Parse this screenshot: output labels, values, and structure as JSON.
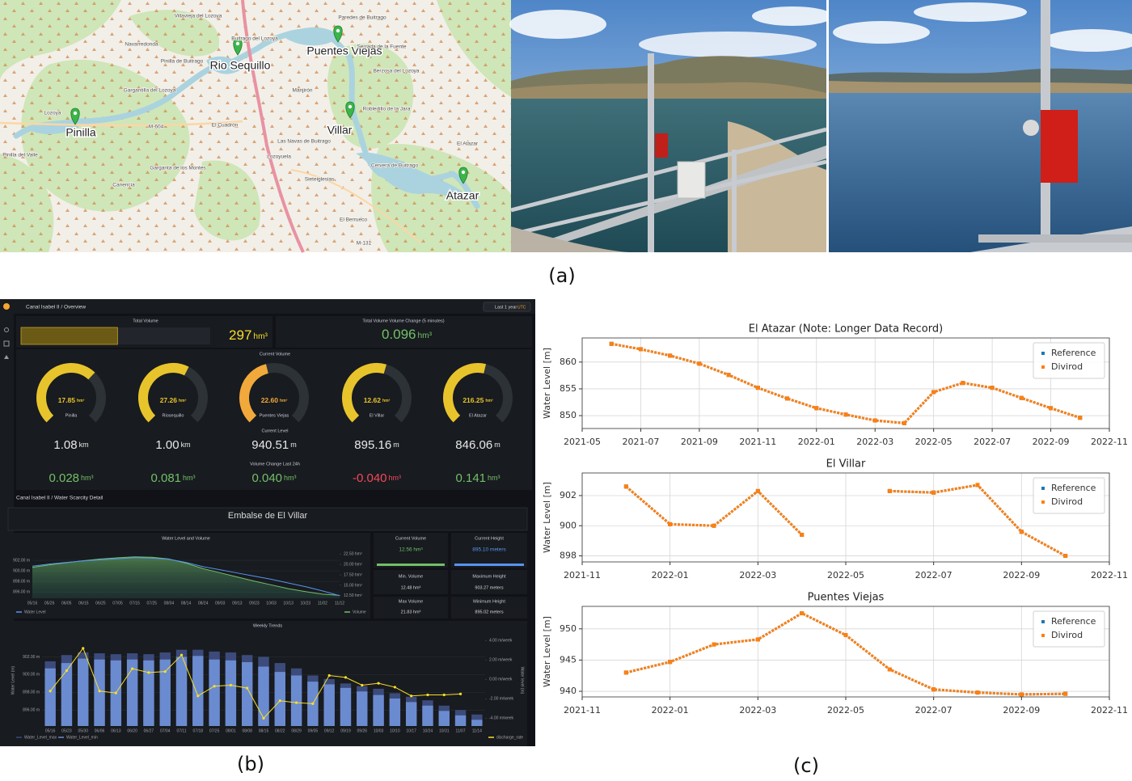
{
  "figure": {
    "labels": [
      "(a)",
      "(b)",
      "(c)"
    ]
  },
  "map": {
    "markers": [
      "Rio Sequillo",
      "Puentes Viejas",
      "Pinilla",
      "Villar",
      "Atazar"
    ],
    "places": [
      "Villavieja del Lozoya",
      "Buitrago del Lozoya",
      "Paredes de Buitrago",
      "Navarredonda",
      "Pinilla de Buitrago",
      "Gargantilla del Lozoya",
      "Lozoya",
      "M-604",
      "El Cuadrón",
      "Manjirón",
      "Serrada de la Fuente",
      "Berzosa del Lozoya",
      "Robledillo de la Jara",
      "Las Navas de Buitrago",
      "Lozoyuela",
      "Garganta de los Montes",
      "Sieteiglesias",
      "Cervera de Buitrago",
      "El Atazar",
      "Pinilla del Valle",
      "Canencia",
      "El Berrueco",
      "M-131"
    ]
  },
  "dashboard": {
    "overview": {
      "breadcrumb": "Canal Isabel II / Overview",
      "time_range": "Last 1 year",
      "timezone": "UTC"
    },
    "total_volume": {
      "title": "Total Volume",
      "value": "297",
      "unit": "hm³",
      "percent": 51
    },
    "volume_change": {
      "title": "Total Volume Volume Change (5 minutes)",
      "value": "0.096",
      "unit": "hm³"
    },
    "current_volume_title": "Current Volume",
    "gauges": [
      {
        "value": "17.85",
        "unit": "hm³",
        "name": "Pinilla",
        "percent": 66,
        "color": "#e8c42c"
      },
      {
        "value": "27.26",
        "unit": "hm³",
        "name": "Riosequillo",
        "percent": 60,
        "color": "#e8c42c"
      },
      {
        "value": "22.60",
        "unit": "hm³",
        "name": "Puentes Viejas",
        "percent": 45,
        "color": "#f2a93b"
      },
      {
        "value": "12.62",
        "unit": "hm³",
        "name": "El Villar",
        "percent": 56,
        "color": "#e8c42c"
      },
      {
        "value": "216.25",
        "unit": "hm³",
        "name": "El Atazar",
        "percent": 55,
        "color": "#e8c42c"
      }
    ],
    "current_level_title": "Current Level",
    "levels": [
      {
        "value": "1.08",
        "unit": "km"
      },
      {
        "value": "1.00",
        "unit": "km"
      },
      {
        "value": "940.51",
        "unit": "m"
      },
      {
        "value": "895.16",
        "unit": "m"
      },
      {
        "value": "846.06",
        "unit": "m"
      }
    ],
    "change_title": "Volume Change Last 24h",
    "changes": [
      {
        "value": "0.028",
        "unit": "hm³",
        "color": "#73bf69"
      },
      {
        "value": "0.081",
        "unit": "hm³",
        "color": "#73bf69"
      },
      {
        "value": "0.040",
        "unit": "hm³",
        "color": "#73bf69"
      },
      {
        "value": "-0.040",
        "unit": "hm³",
        "color": "#f2495c"
      },
      {
        "value": "0.141",
        "unit": "hm³",
        "color": "#73bf69"
      }
    ],
    "detail": {
      "breadcrumb": "Canal Isabel II / Water Scarcity Detail",
      "title": "Embalse de El Villar"
    },
    "stats": [
      {
        "label": "Current Volume",
        "value": "12.56 hm³",
        "color": "#73bf69"
      },
      {
        "label": "Current Height",
        "value": "895.10 meters",
        "color": "#5794f2"
      },
      {
        "label": "Min. Volume",
        "value": "12.48 hm³",
        "color": "#d8d9da"
      },
      {
        "label": "Maximum Height",
        "value": "903.27 meters",
        "color": "#d8d9da"
      },
      {
        "label": "Max Volume",
        "value": "21.83 hm³",
        "color": "#d8d9da"
      },
      {
        "label": "Minimum Height",
        "value": "895.02 meters",
        "color": "#d8d9da"
      }
    ]
  },
  "chart_data": [
    {
      "type": "line",
      "title": "El Atazar (Note: Longer Data Record)",
      "ylabel": "Water Level [m]",
      "x": [
        "2021-06",
        "2021-07",
        "2021-08",
        "2021-09",
        "2021-10",
        "2021-11",
        "2021-12",
        "2022-01",
        "2022-02",
        "2022-03",
        "2022-04",
        "2022-05",
        "2022-06",
        "2022-07",
        "2022-08",
        "2022-09",
        "2022-10"
      ],
      "series": [
        {
          "name": "Reference",
          "color": "#1f77b4",
          "values": [
            863.4,
            862.4,
            861.2,
            859.7,
            857.6,
            855.2,
            853.2,
            851.4,
            850.2,
            849.1,
            848.6,
            854.4,
            856.1,
            855.2,
            853.3,
            851.4,
            849.6
          ]
        },
        {
          "name": "Divirod",
          "color": "#ff7f0e",
          "values": [
            863.4,
            862.4,
            861.2,
            859.7,
            857.6,
            855.2,
            853.2,
            851.4,
            850.2,
            849.1,
            848.6,
            854.4,
            856.1,
            855.2,
            853.3,
            851.4,
            849.6
          ]
        }
      ],
      "xlim": [
        "2021-05",
        "2022-11"
      ],
      "xticks": [
        "2021-05",
        "2021-07",
        "2021-09",
        "2021-11",
        "2022-01",
        "2022-03",
        "2022-05",
        "2022-07",
        "2022-09",
        "2022-11"
      ],
      "ylim": [
        847.6,
        864.5
      ],
      "yticks": [
        850,
        855,
        860
      ],
      "grid": true,
      "legend": "upper right"
    },
    {
      "type": "line",
      "title": "El Villar",
      "ylabel": "Water Level [m]",
      "x": [
        "2021-12",
        "2022-01",
        "2022-02",
        "2022-03",
        "2022-04",
        "2022-05",
        "2022-06",
        "2022-07",
        "2022-08",
        "2022-09",
        "2022-10"
      ],
      "series": [
        {
          "name": "Reference",
          "color": "#1f77b4",
          "values": [
            902.6,
            900.1,
            900.0,
            902.3,
            899.4,
            null,
            902.3,
            902.2,
            902.7,
            899.6,
            898.0
          ]
        },
        {
          "name": "Divirod",
          "color": "#ff7f0e",
          "values": [
            902.6,
            900.1,
            900.0,
            902.3,
            899.4,
            null,
            902.3,
            902.2,
            902.7,
            899.6,
            898.0
          ]
        }
      ],
      "xlim": [
        "2021-11",
        "2022-11"
      ],
      "xticks": [
        "2021-11",
        "2022-01",
        "2022-03",
        "2022-05",
        "2022-07",
        "2022-09",
        "2022-11"
      ],
      "ylim": [
        897.6,
        903.5
      ],
      "yticks": [
        898,
        900,
        902
      ],
      "grid": true,
      "legend": "upper right"
    },
    {
      "type": "line",
      "title": "Puentes Viejas",
      "ylabel": "Water Level [m]",
      "x": [
        "2021-12",
        "2022-01",
        "2022-02",
        "2022-03",
        "2022-04",
        "2022-05",
        "2022-06",
        "2022-07",
        "2022-08",
        "2022-09",
        "2022-10"
      ],
      "series": [
        {
          "name": "Reference",
          "color": "#1f77b4",
          "values": [
            943.0,
            944.7,
            947.5,
            948.3,
            952.5,
            949.0,
            943.5,
            940.3,
            939.8,
            939.5,
            939.6
          ]
        },
        {
          "name": "Divirod",
          "color": "#ff7f0e",
          "values": [
            943.0,
            944.7,
            947.5,
            948.3,
            952.5,
            949.0,
            943.5,
            940.3,
            939.8,
            939.5,
            939.6
          ]
        }
      ],
      "xlim": [
        "2021-11",
        "2022-11"
      ],
      "xticks": [
        "2021-11",
        "2022-01",
        "2022-03",
        "2022-05",
        "2022-07",
        "2022-09",
        "2022-11"
      ],
      "ylim": [
        939.1,
        953.6
      ],
      "yticks": [
        940,
        945,
        950
      ],
      "grid": true,
      "legend": "upper right"
    },
    {
      "type": "area",
      "title": "Water Level and Volume",
      "categories": [
        "05/16",
        "05/26",
        "06/05",
        "06/15",
        "06/25",
        "07/05",
        "07/15",
        "07/25",
        "08/04",
        "08/14",
        "08/24",
        "09/03",
        "09/13",
        "09/23",
        "10/03",
        "10/13",
        "10/23",
        "11/02",
        "11/12"
      ],
      "series": [
        {
          "name": "Water Level",
          "color": "#5794f2",
          "type": "line",
          "values": [
            900.9,
            901.3,
            901.6,
            901.9,
            902.1,
            902.3,
            902.5,
            902.4,
            902.2,
            901.6,
            900.8,
            900.2,
            899.6,
            899.0,
            898.4,
            897.7,
            897.0,
            896.2,
            895.3
          ]
        },
        {
          "name": "Volume",
          "color": "#73bf69",
          "axis": "y2",
          "type": "area",
          "values": [
            19.3,
            19.9,
            20.4,
            20.9,
            21.3,
            21.6,
            21.8,
            21.7,
            21.3,
            20.3,
            19.0,
            18.0,
            17.0,
            16.0,
            15.1,
            14.2,
            13.5,
            12.9,
            12.6
          ]
        }
      ],
      "ylim": [
        894.8,
        904
      ],
      "yticks": [
        {
          "value": 896,
          "label": "896.00 m"
        },
        {
          "value": 898,
          "label": "898.00 m"
        },
        {
          "value": 900,
          "label": "900.00 m"
        },
        {
          "value": 902,
          "label": "902.00 m"
        }
      ],
      "y2lim": [
        11.9,
        23.5
      ],
      "y2ticks": [
        {
          "value": 12.5,
          "label": "12.50 hm³"
        },
        {
          "value": 15,
          "label": "15.00 hm³"
        },
        {
          "value": 17.5,
          "label": "17.50 hm³"
        },
        {
          "value": 20,
          "label": "20.00 hm³"
        },
        {
          "value": 22.5,
          "label": "22.50 hm³"
        }
      ],
      "grid": true,
      "legend": "bottom"
    },
    {
      "type": "bar",
      "title": "Weekly Trends",
      "ylabel": "Water Level (m)",
      "y2label": "Water level (m)",
      "categories": [
        "05/16",
        "05/23",
        "05/30",
        "06/06",
        "06/13",
        "06/20",
        "06/27",
        "07/04",
        "07/11",
        "07/18",
        "07/25",
        "08/01",
        "08/08",
        "08/15",
        "08/22",
        "08/29",
        "09/05",
        "09/12",
        "09/19",
        "09/26",
        "10/03",
        "10/10",
        "10/17",
        "10/24",
        "10/31",
        "11/07",
        "11/14"
      ],
      "series": [
        {
          "name": "Water_Level_max",
          "color": "#3c4b7b",
          "values": [
            901.5,
            902.2,
            902.5,
            902.4,
            902.3,
            902.4,
            902.3,
            902.5,
            902.8,
            902.8,
            902.6,
            902.5,
            902.2,
            902.0,
            901.3,
            900.7,
            899.9,
            899.5,
            899.0,
            898.7,
            898.4,
            897.9,
            897.5,
            897.1,
            896.5,
            896.0,
            895.5
          ]
        },
        {
          "name": "Water_Level_min",
          "color": "#6b8bd0",
          "values": [
            900.7,
            901.3,
            901.8,
            901.7,
            901.6,
            901.7,
            901.6,
            901.7,
            902.0,
            902.1,
            901.7,
            901.6,
            901.4,
            900.9,
            900.3,
            899.9,
            899.2,
            898.9,
            898.5,
            898.1,
            897.7,
            897.3,
            896.9,
            896.5,
            895.9,
            895.4,
            894.9
          ]
        },
        {
          "name": "discharge_rate",
          "color": "#fade2a",
          "axis": "y2",
          "type": "line",
          "values": [
            -1.2,
            0.9,
            3.2,
            -1.2,
            -1.4,
            1.1,
            0.7,
            0.8,
            2.5,
            -1.7,
            -0.7,
            -0.6,
            -0.9,
            -4.0,
            -2.2,
            -2.4,
            -2.5,
            0.4,
            0.2,
            -0.6,
            -0.4,
            -0.8,
            -1.7,
            -1.6,
            -1.6,
            -1.5,
            null
          ]
        }
      ],
      "ylim": [
        894.2,
        904.5
      ],
      "yticks": [
        {
          "value": 896,
          "label": "896.00 m"
        },
        {
          "value": 898,
          "label": "898.00 m"
        },
        {
          "value": 900,
          "label": "900.00 m"
        },
        {
          "value": 902,
          "label": "902.00 m"
        }
      ],
      "y2lim": [
        -4.8,
        4.6
      ],
      "y2ticks": [
        {
          "value": -4,
          "label": "-4.00 m/week"
        },
        {
          "value": -2,
          "label": "-2.00 m/week"
        },
        {
          "value": 0,
          "label": "0.00 m/week"
        },
        {
          "value": 2,
          "label": "2.00 m/week"
        },
        {
          "value": 4,
          "label": "4.00 m/week"
        }
      ],
      "grid": true,
      "legend": "bottom"
    }
  ]
}
